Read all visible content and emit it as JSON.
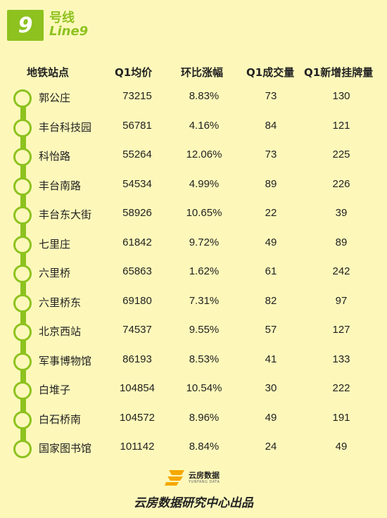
{
  "line": {
    "number": "9",
    "name_cn": "号线",
    "name_en": "Line9",
    "color": "#8dc21f"
  },
  "columns": [
    "地铁站点",
    "Q1均价",
    "环比涨幅",
    "Q1成交量",
    "Q1新增挂牌量"
  ],
  "rows": [
    {
      "station": "郭公庄",
      "price": "73215",
      "change": "8.83%",
      "volume": "73",
      "new_listings": "130"
    },
    {
      "station": "丰台科技园",
      "price": "56781",
      "change": "4.16%",
      "volume": "84",
      "new_listings": "121"
    },
    {
      "station": "科怡路",
      "price": "55264",
      "change": "12.06%",
      "volume": "73",
      "new_listings": "225"
    },
    {
      "station": "丰台南路",
      "price": "54534",
      "change": "4.99%",
      "volume": "89",
      "new_listings": "226"
    },
    {
      "station": "丰台东大街",
      "price": "58926",
      "change": "10.65%",
      "volume": "22",
      "new_listings": "39"
    },
    {
      "station": "七里庄",
      "price": "61842",
      "change": "9.72%",
      "volume": "49",
      "new_listings": "89"
    },
    {
      "station": "六里桥",
      "price": "65863",
      "change": "1.62%",
      "volume": "61",
      "new_listings": "242"
    },
    {
      "station": "六里桥东",
      "price": "69180",
      "change": "7.31%",
      "volume": "82",
      "new_listings": "97"
    },
    {
      "station": "北京西站",
      "price": "74537",
      "change": "9.55%",
      "volume": "57",
      "new_listings": "127"
    },
    {
      "station": "军事博物馆",
      "price": "86193",
      "change": "8.53%",
      "volume": "41",
      "new_listings": "133"
    },
    {
      "station": "白堆子",
      "price": "104854",
      "change": "10.54%",
      "volume": "30",
      "new_listings": "222"
    },
    {
      "station": "白石桥南",
      "price": "104572",
      "change": "8.96%",
      "volume": "49",
      "new_listings": "191"
    },
    {
      "station": "国家图书馆",
      "price": "101142",
      "change": "8.84%",
      "volume": "24",
      "new_listings": "49"
    }
  ],
  "footer": {
    "logo_cn": "云房数据",
    "logo_en": "YUNFANG DATA",
    "credit": "云房数据研究中心出品",
    "logo_color": "#f5a800"
  }
}
